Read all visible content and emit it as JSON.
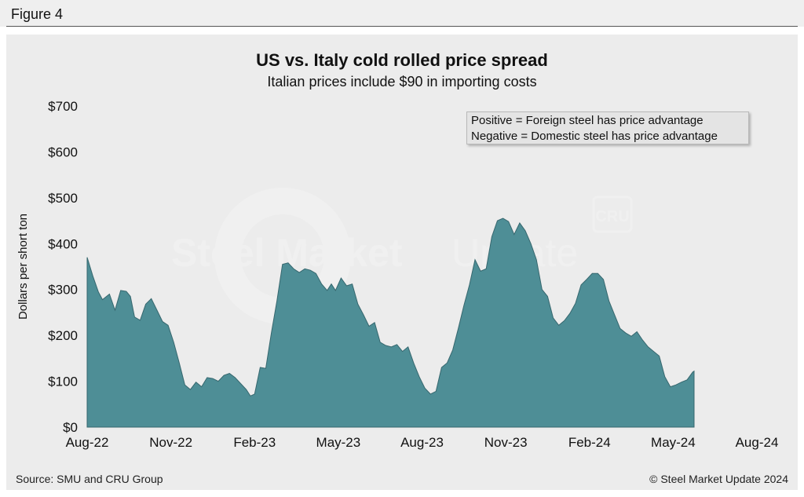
{
  "figure_label": "Figure 4",
  "source": "Source: SMU and CRU Group",
  "copyright": "© Steel Market Update 2024",
  "watermark": {
    "text_bold": "Steel Market",
    "text_light": "Update",
    "badge": "CRU"
  },
  "note": {
    "line1": "Positive = Foreign steel has price advantage",
    "line2": "Negative = Domestic steel has price advantage"
  },
  "colors": {
    "area_fill": "#4e8e96",
    "area_stroke": "#36676e",
    "panel": "#ececec"
  },
  "chart_data": {
    "type": "area",
    "title": "US vs. Italy cold rolled price spread",
    "subtitle": "Italian prices include $90 in importing costs",
    "ylabel": "Dollars per short ton",
    "xlabel": "",
    "ylim": [
      0,
      700
    ],
    "yticks": [
      0,
      100,
      200,
      300,
      400,
      500,
      600,
      700
    ],
    "ytick_labels": [
      "$0",
      "$100",
      "$200",
      "$300",
      "$400",
      "$500",
      "$600",
      "$700"
    ],
    "xtick_labels": [
      "Aug-22",
      "Nov-22",
      "Feb-23",
      "May-23",
      "Aug-23",
      "Nov-23",
      "Feb-24",
      "May-24",
      "Aug-24"
    ],
    "x_range_months": [
      0,
      24
    ],
    "grid": false,
    "series": [
      {
        "name": "",
        "values": [
          [
            0.0,
            370
          ],
          [
            0.2,
            330
          ],
          [
            0.4,
            295
          ],
          [
            0.55,
            278
          ],
          [
            0.8,
            290
          ],
          [
            1.0,
            255
          ],
          [
            1.2,
            298
          ],
          [
            1.4,
            296
          ],
          [
            1.55,
            285
          ],
          [
            1.7,
            240
          ],
          [
            1.9,
            233
          ],
          [
            2.1,
            268
          ],
          [
            2.3,
            280
          ],
          [
            2.5,
            255
          ],
          [
            2.7,
            230
          ],
          [
            2.9,
            222
          ],
          [
            3.1,
            185
          ],
          [
            3.3,
            140
          ],
          [
            3.5,
            92
          ],
          [
            3.7,
            82
          ],
          [
            3.9,
            98
          ],
          [
            4.1,
            88
          ],
          [
            4.3,
            108
          ],
          [
            4.5,
            106
          ],
          [
            4.7,
            100
          ],
          [
            4.9,
            113
          ],
          [
            5.1,
            117
          ],
          [
            5.3,
            108
          ],
          [
            5.5,
            95
          ],
          [
            5.7,
            82
          ],
          [
            5.85,
            68
          ],
          [
            6.0,
            72
          ],
          [
            6.2,
            130
          ],
          [
            6.4,
            128
          ],
          [
            6.6,
            205
          ],
          [
            6.8,
            275
          ],
          [
            7.0,
            355
          ],
          [
            7.2,
            358
          ],
          [
            7.4,
            345
          ],
          [
            7.6,
            337
          ],
          [
            7.8,
            345
          ],
          [
            8.0,
            342
          ],
          [
            8.2,
            335
          ],
          [
            8.4,
            312
          ],
          [
            8.6,
            298
          ],
          [
            8.75,
            312
          ],
          [
            8.9,
            298
          ],
          [
            9.1,
            325
          ],
          [
            9.3,
            308
          ],
          [
            9.5,
            312
          ],
          [
            9.7,
            268
          ],
          [
            9.9,
            245
          ],
          [
            10.1,
            220
          ],
          [
            10.3,
            228
          ],
          [
            10.5,
            185
          ],
          [
            10.7,
            178
          ],
          [
            10.9,
            175
          ],
          [
            11.1,
            180
          ],
          [
            11.3,
            165
          ],
          [
            11.5,
            175
          ],
          [
            11.7,
            140
          ],
          [
            11.9,
            110
          ],
          [
            12.1,
            85
          ],
          [
            12.3,
            72
          ],
          [
            12.5,
            78
          ],
          [
            12.7,
            130
          ],
          [
            12.9,
            140
          ],
          [
            13.1,
            168
          ],
          [
            13.3,
            215
          ],
          [
            13.5,
            265
          ],
          [
            13.7,
            310
          ],
          [
            13.9,
            365
          ],
          [
            14.1,
            340
          ],
          [
            14.3,
            345
          ],
          [
            14.5,
            415
          ],
          [
            14.7,
            450
          ],
          [
            14.9,
            455
          ],
          [
            15.1,
            448
          ],
          [
            15.3,
            420
          ],
          [
            15.5,
            445
          ],
          [
            15.7,
            428
          ],
          [
            15.9,
            400
          ],
          [
            16.1,
            365
          ],
          [
            16.3,
            300
          ],
          [
            16.5,
            285
          ],
          [
            16.7,
            238
          ],
          [
            16.9,
            222
          ],
          [
            17.1,
            232
          ],
          [
            17.3,
            248
          ],
          [
            17.5,
            270
          ],
          [
            17.7,
            310
          ],
          [
            17.9,
            322
          ],
          [
            18.1,
            335
          ],
          [
            18.3,
            335
          ],
          [
            18.5,
            322
          ],
          [
            18.7,
            275
          ],
          [
            18.9,
            245
          ],
          [
            19.1,
            215
          ],
          [
            19.3,
            205
          ],
          [
            19.5,
            198
          ],
          [
            19.7,
            208
          ],
          [
            19.9,
            190
          ],
          [
            20.1,
            175
          ],
          [
            20.3,
            165
          ],
          [
            20.5,
            155
          ],
          [
            20.7,
            110
          ],
          [
            20.9,
            88
          ],
          [
            21.1,
            92
          ],
          [
            21.3,
            98
          ],
          [
            21.5,
            103
          ],
          [
            21.7,
            120
          ],
          [
            21.75,
            122
          ]
        ]
      }
    ]
  }
}
